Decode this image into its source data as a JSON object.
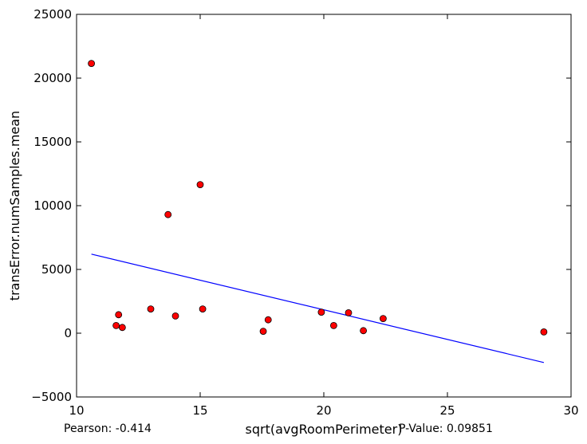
{
  "chart_data": {
    "type": "scatter",
    "xlabel": "sqrt(avgRoomPerimeter)",
    "ylabel": "transError.numSamples.mean",
    "xlim": [
      10,
      30
    ],
    "ylim": [
      -5000,
      25000
    ],
    "xticks": [
      10,
      15,
      20,
      25,
      30
    ],
    "xtick_labels": [
      "10",
      "15",
      "20",
      "25",
      "30"
    ],
    "yticks": [
      -5000,
      0,
      5000,
      10000,
      15000,
      20000,
      25000
    ],
    "ytick_labels": [
      "−5000",
      "0",
      "5000",
      "10000",
      "15000",
      "20000",
      "25000"
    ],
    "grid": false,
    "point_color": "#ff0000",
    "line_color": "#0000ff",
    "points": [
      {
        "x": 10.6,
        "y": 21150
      },
      {
        "x": 11.6,
        "y": 600
      },
      {
        "x": 11.7,
        "y": 1450
      },
      {
        "x": 11.85,
        "y": 450
      },
      {
        "x": 13.0,
        "y": 1900
      },
      {
        "x": 13.7,
        "y": 9300
      },
      {
        "x": 14.0,
        "y": 1350
      },
      {
        "x": 15.0,
        "y": 11650
      },
      {
        "x": 15.1,
        "y": 1900
      },
      {
        "x": 17.55,
        "y": 150
      },
      {
        "x": 17.75,
        "y": 1050
      },
      {
        "x": 19.9,
        "y": 1650
      },
      {
        "x": 20.4,
        "y": 600
      },
      {
        "x": 21.0,
        "y": 1600
      },
      {
        "x": 21.6,
        "y": 200
      },
      {
        "x": 22.4,
        "y": 1150
      },
      {
        "x": 28.9,
        "y": 100
      }
    ],
    "fit_line": {
      "x": [
        10.6,
        28.9
      ],
      "y": [
        6200,
        -2300
      ]
    },
    "annotations": {
      "pearson": "Pearson: -0.414",
      "pvalue": "P-Value: 0.09851"
    }
  }
}
